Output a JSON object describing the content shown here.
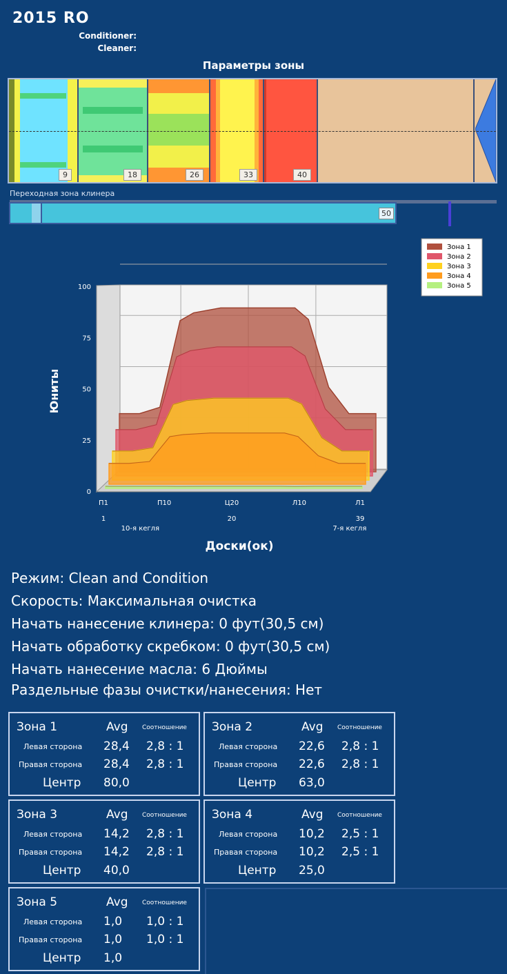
{
  "header": {
    "title": "2015  RO",
    "conditioner_label": "Conditioner:",
    "cleaner_label": "Cleaner:"
  },
  "zone_params": {
    "heading": "Параметры зоны",
    "segments": [
      {
        "value": "9"
      },
      {
        "value": "18"
      },
      {
        "value": "26"
      },
      {
        "value": "33"
      },
      {
        "value": "40"
      }
    ],
    "transition_label": "Переходная зона клинера",
    "transition_value": "50",
    "transition_fraction": 0.78
  },
  "chart_data": {
    "type": "area",
    "ylabel": "Юниты",
    "xlabel": "Доски(ок)",
    "yticks": [
      "100",
      "75",
      "50",
      "25",
      "0"
    ],
    "ylim": [
      0,
      100
    ],
    "xlim": [
      1,
      39
    ],
    "x_tick_labels": [
      "П1",
      "П10",
      "Ц20",
      "Л10",
      "Л1"
    ],
    "x_tick_values": [
      1,
      10,
      20,
      30,
      39
    ],
    "x_num_labels": [
      {
        "x": 1,
        "label": "1"
      },
      {
        "x": 20,
        "label": "20"
      },
      {
        "x": 39,
        "label": "39"
      }
    ],
    "x_annotations": [
      {
        "x": 4,
        "label": "10-я кегля"
      },
      {
        "x": 35,
        "label": "7-я кегля"
      }
    ],
    "legend_position": "top-right",
    "series": [
      {
        "name": "Зона 1",
        "color": "#b0503e",
        "levels": [
          28.4,
          80.0,
          28.4
        ]
      },
      {
        "name": "Зона 2",
        "color": "#e0566a",
        "levels": [
          22.6,
          63.0,
          22.6
        ]
      },
      {
        "name": "Зона 3",
        "color": "#ffd11f",
        "levels": [
          14.2,
          40.0,
          14.2
        ]
      },
      {
        "name": "Зона 4",
        "color": "#ff9c1e",
        "levels": [
          10.2,
          25.0,
          10.2
        ]
      },
      {
        "name": "Зона 5",
        "color": "#b5f080",
        "levels": [
          1.0,
          1.0,
          1.0
        ]
      }
    ]
  },
  "info": [
    "Режим: Clean and Condition",
    "Скорость: Максимальная очистка",
    "Начать нанесение клинера: 0 фут(30,5 см)",
    "Начать обработку скребком: 0 фут(30,5 см)",
    "Начать нанесение масла: 6 Дюймы",
    "Раздельные фазы очистки/нанесения: Нет"
  ],
  "zones": [
    {
      "title": "Зона 1",
      "avg": "Avg",
      "ratio_hdr": "Соотношение",
      "left_label": "Левая сторона",
      "left_avg": "28,4",
      "left_ratio": "2,8 : 1",
      "right_label": "Правая сторона",
      "right_avg": "28,4",
      "right_ratio": "2,8 : 1",
      "center_label": "Центр",
      "center": "80,0"
    },
    {
      "title": "Зона 2",
      "avg": "Avg",
      "ratio_hdr": "Соотношение",
      "left_label": "Левая сторона",
      "left_avg": "22,6",
      "left_ratio": "2,8 : 1",
      "right_label": "Правая сторона",
      "right_avg": "22,6",
      "right_ratio": "2,8 : 1",
      "center_label": "Центр",
      "center": "63,0"
    },
    {
      "title": "Зона 3",
      "avg": "Avg",
      "ratio_hdr": "Соотношение",
      "left_label": "Левая сторона",
      "left_avg": "14,2",
      "left_ratio": "2,8 : 1",
      "right_label": "Правая сторона",
      "right_avg": "14,2",
      "right_ratio": "2,8 : 1",
      "center_label": "Центр",
      "center": "40,0"
    },
    {
      "title": "Зона 4",
      "avg": "Avg",
      "ratio_hdr": "Соотношение",
      "left_label": "Левая сторона",
      "left_avg": "10,2",
      "left_ratio": "2,5 : 1",
      "right_label": "Правая сторона",
      "right_avg": "10,2",
      "right_ratio": "2,5 : 1",
      "center_label": "Центр",
      "center": "25,0"
    },
    {
      "title": "Зона 5",
      "avg": "Avg",
      "ratio_hdr": "Соотношение",
      "left_label": "Левая сторона",
      "left_avg": "1,0",
      "left_ratio": "1,0 : 1",
      "right_label": "Правая сторона",
      "right_avg": "1,0",
      "right_ratio": "1,0 : 1",
      "center_label": "Центр",
      "center": "1,0"
    }
  ]
}
